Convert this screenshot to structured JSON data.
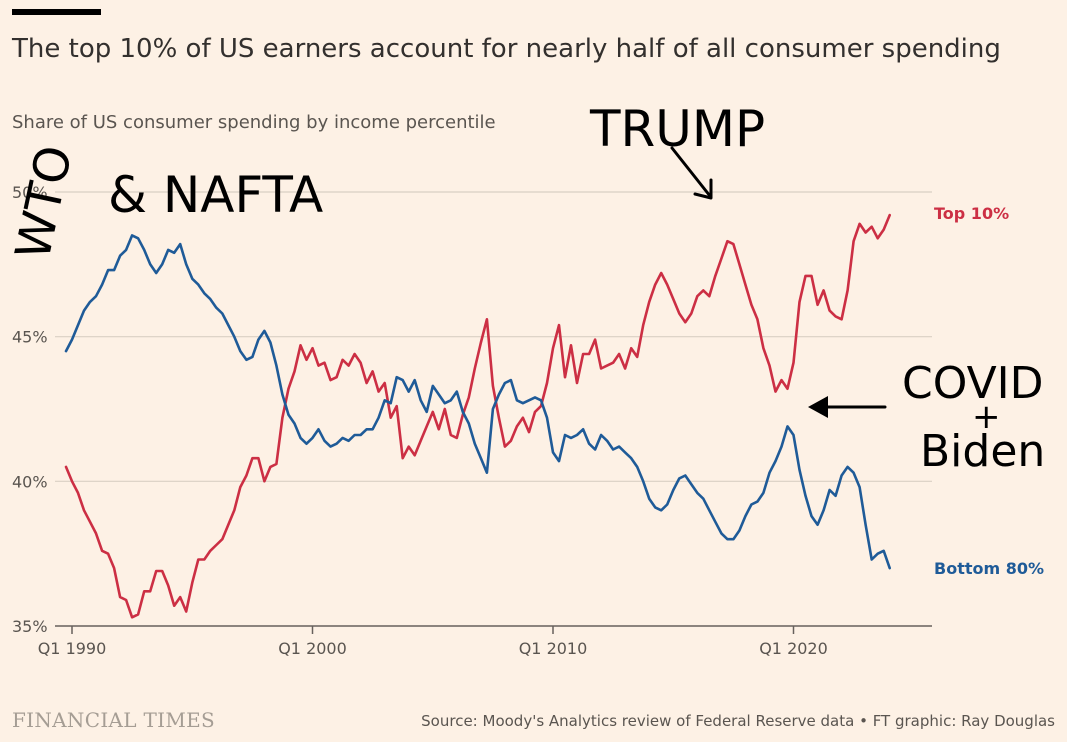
{
  "header": {
    "title": "The top 10% of US earners account for nearly half of all consumer spending",
    "subtitle": "Share of US consumer spending by income percentile"
  },
  "footer": {
    "brand": "FINANCIAL TIMES",
    "source": "Source: Moody's Analytics review of Federal Reserve data • FT graphic: Ray Douglas"
  },
  "colors": {
    "background": "#fdf1e5",
    "top10": "#cc2f44",
    "bottom80": "#1f5b98",
    "grid": "#d9cfc4",
    "axis": "#66605c"
  },
  "annotations": {
    "wto": "WTO",
    "nafta": "& NAFTA",
    "trump": "TRUMP",
    "covid": "COVID",
    "plus": "+",
    "biden": "Biden"
  },
  "chart_data": {
    "type": "line",
    "title": "The top 10% of US earners account for nearly half of all consumer spending",
    "subtitle": "Share of US consumer spending by income percentile",
    "xlabel": "",
    "ylabel": "",
    "xlim": [
      1990,
      2025.5
    ],
    "ylim": [
      35,
      50
    ],
    "y_ticks": [
      35,
      40,
      45,
      50
    ],
    "y_tick_labels": [
      "35%",
      "40%",
      "45%",
      "50%"
    ],
    "x_ticks": [
      1990,
      2000,
      2010,
      2020
    ],
    "x_tick_labels": [
      "Q1 1990",
      "Q1 2000",
      "Q1 2010",
      "Q1 2020"
    ],
    "grid": true,
    "legend": "right-end labels",
    "series": [
      {
        "name": "Top 10%",
        "points": [
          [
            1989.75,
            40.5
          ],
          [
            1990.0,
            40.0
          ],
          [
            1990.25,
            39.6
          ],
          [
            1990.5,
            39.0
          ],
          [
            1990.75,
            38.6
          ],
          [
            1991.0,
            38.2
          ],
          [
            1991.25,
            37.6
          ],
          [
            1991.5,
            37.5
          ],
          [
            1991.75,
            37.0
          ],
          [
            1992.0,
            36.0
          ],
          [
            1992.25,
            35.9
          ],
          [
            1992.5,
            35.3
          ],
          [
            1992.75,
            35.4
          ],
          [
            1993.0,
            36.2
          ],
          [
            1993.25,
            36.2
          ],
          [
            1993.5,
            36.9
          ],
          [
            1993.75,
            36.9
          ],
          [
            1994.0,
            36.4
          ],
          [
            1994.25,
            35.7
          ],
          [
            1994.5,
            36.0
          ],
          [
            1994.75,
            35.5
          ],
          [
            1995.0,
            36.5
          ],
          [
            1995.25,
            37.3
          ],
          [
            1995.5,
            37.3
          ],
          [
            1995.75,
            37.6
          ],
          [
            1996.0,
            37.8
          ],
          [
            1996.25,
            38.0
          ],
          [
            1996.5,
            38.5
          ],
          [
            1996.75,
            39.0
          ],
          [
            1997.0,
            39.8
          ],
          [
            1997.25,
            40.2
          ],
          [
            1997.5,
            40.8
          ],
          [
            1997.75,
            40.8
          ],
          [
            1998.0,
            40.0
          ],
          [
            1998.25,
            40.5
          ],
          [
            1998.5,
            40.6
          ],
          [
            1998.75,
            42.2
          ],
          [
            1999.0,
            43.2
          ],
          [
            1999.25,
            43.8
          ],
          [
            1999.5,
            44.7
          ],
          [
            1999.75,
            44.2
          ],
          [
            2000.0,
            44.6
          ],
          [
            2000.25,
            44.0
          ],
          [
            2000.5,
            44.1
          ],
          [
            2000.75,
            43.5
          ],
          [
            2001.0,
            43.6
          ],
          [
            2001.25,
            44.2
          ],
          [
            2001.5,
            44.0
          ],
          [
            2001.75,
            44.4
          ],
          [
            2002.0,
            44.1
          ],
          [
            2002.25,
            43.4
          ],
          [
            2002.5,
            43.8
          ],
          [
            2002.75,
            43.1
          ],
          [
            2003.0,
            43.4
          ],
          [
            2003.25,
            42.2
          ],
          [
            2003.5,
            42.6
          ],
          [
            2003.75,
            40.8
          ],
          [
            2004.0,
            41.2
          ],
          [
            2004.25,
            40.9
          ],
          [
            2004.5,
            41.4
          ],
          [
            2004.75,
            41.9
          ],
          [
            2005.0,
            42.4
          ],
          [
            2005.25,
            41.8
          ],
          [
            2005.5,
            42.5
          ],
          [
            2005.75,
            41.6
          ],
          [
            2006.0,
            41.5
          ],
          [
            2006.25,
            42.3
          ],
          [
            2006.5,
            42.9
          ],
          [
            2006.75,
            43.9
          ],
          [
            2007.0,
            44.8
          ],
          [
            2007.25,
            45.6
          ],
          [
            2007.5,
            43.3
          ],
          [
            2007.75,
            42.2
          ],
          [
            2008.0,
            41.2
          ],
          [
            2008.25,
            41.4
          ],
          [
            2008.5,
            41.9
          ],
          [
            2008.75,
            42.2
          ],
          [
            2009.0,
            41.7
          ],
          [
            2009.25,
            42.4
          ],
          [
            2009.5,
            42.6
          ],
          [
            2009.75,
            43.4
          ],
          [
            2010.0,
            44.6
          ],
          [
            2010.25,
            45.4
          ],
          [
            2010.5,
            43.6
          ],
          [
            2010.75,
            44.7
          ],
          [
            2011.0,
            43.4
          ],
          [
            2011.25,
            44.4
          ],
          [
            2011.5,
            44.4
          ],
          [
            2011.75,
            44.9
          ],
          [
            2012.0,
            43.9
          ],
          [
            2012.25,
            44.0
          ],
          [
            2012.5,
            44.1
          ],
          [
            2012.75,
            44.4
          ],
          [
            2013.0,
            43.9
          ],
          [
            2013.25,
            44.6
          ],
          [
            2013.5,
            44.3
          ],
          [
            2013.75,
            45.4
          ],
          [
            2014.0,
            46.2
          ],
          [
            2014.25,
            46.8
          ],
          [
            2014.5,
            47.2
          ],
          [
            2014.75,
            46.8
          ],
          [
            2015.0,
            46.3
          ],
          [
            2015.25,
            45.8
          ],
          [
            2015.5,
            45.5
          ],
          [
            2015.75,
            45.8
          ],
          [
            2016.0,
            46.4
          ],
          [
            2016.25,
            46.6
          ],
          [
            2016.5,
            46.4
          ],
          [
            2016.75,
            47.1
          ],
          [
            2017.0,
            47.7
          ],
          [
            2017.25,
            48.3
          ],
          [
            2017.5,
            48.2
          ],
          [
            2017.75,
            47.5
          ],
          [
            2018.0,
            46.8
          ],
          [
            2018.25,
            46.1
          ],
          [
            2018.5,
            45.6
          ],
          [
            2018.75,
            44.6
          ],
          [
            2019.0,
            44.0
          ],
          [
            2019.25,
            43.1
          ],
          [
            2019.5,
            43.5
          ],
          [
            2019.75,
            43.2
          ],
          [
            2020.0,
            44.1
          ],
          [
            2020.25,
            46.2
          ],
          [
            2020.5,
            47.1
          ],
          [
            2020.75,
            47.1
          ],
          [
            2021.0,
            46.1
          ],
          [
            2021.25,
            46.6
          ],
          [
            2021.5,
            45.9
          ],
          [
            2021.75,
            45.7
          ],
          [
            2022.0,
            45.6
          ],
          [
            2022.25,
            46.6
          ],
          [
            2022.5,
            48.3
          ],
          [
            2022.75,
            48.9
          ],
          [
            2023.0,
            48.6
          ],
          [
            2023.25,
            48.8
          ],
          [
            2023.5,
            48.4
          ],
          [
            2023.75,
            48.7
          ],
          [
            2024.0,
            49.2
          ]
        ]
      },
      {
        "name": "Bottom 80%",
        "points": [
          [
            1989.75,
            44.5
          ],
          [
            1990.0,
            44.9
          ],
          [
            1990.25,
            45.4
          ],
          [
            1990.5,
            45.9
          ],
          [
            1990.75,
            46.2
          ],
          [
            1991.0,
            46.4
          ],
          [
            1991.25,
            46.8
          ],
          [
            1991.5,
            47.3
          ],
          [
            1991.75,
            47.3
          ],
          [
            1992.0,
            47.8
          ],
          [
            1992.25,
            48.0
          ],
          [
            1992.5,
            48.5
          ],
          [
            1992.75,
            48.4
          ],
          [
            1993.0,
            48.0
          ],
          [
            1993.25,
            47.5
          ],
          [
            1993.5,
            47.2
          ],
          [
            1993.75,
            47.5
          ],
          [
            1994.0,
            48.0
          ],
          [
            1994.25,
            47.9
          ],
          [
            1994.5,
            48.2
          ],
          [
            1994.75,
            47.5
          ],
          [
            1995.0,
            47.0
          ],
          [
            1995.25,
            46.8
          ],
          [
            1995.5,
            46.5
          ],
          [
            1995.75,
            46.3
          ],
          [
            1996.0,
            46.0
          ],
          [
            1996.25,
            45.8
          ],
          [
            1996.5,
            45.4
          ],
          [
            1996.75,
            45.0
          ],
          [
            1997.0,
            44.5
          ],
          [
            1997.25,
            44.2
          ],
          [
            1997.5,
            44.3
          ],
          [
            1997.75,
            44.9
          ],
          [
            1998.0,
            45.2
          ],
          [
            1998.25,
            44.8
          ],
          [
            1998.5,
            44.0
          ],
          [
            1998.75,
            43.0
          ],
          [
            1999.0,
            42.3
          ],
          [
            1999.25,
            42.0
          ],
          [
            1999.5,
            41.5
          ],
          [
            1999.75,
            41.3
          ],
          [
            2000.0,
            41.5
          ],
          [
            2000.25,
            41.8
          ],
          [
            2000.5,
            41.4
          ],
          [
            2000.75,
            41.2
          ],
          [
            2001.0,
            41.3
          ],
          [
            2001.25,
            41.5
          ],
          [
            2001.5,
            41.4
          ],
          [
            2001.75,
            41.6
          ],
          [
            2002.0,
            41.6
          ],
          [
            2002.25,
            41.8
          ],
          [
            2002.5,
            41.8
          ],
          [
            2002.75,
            42.2
          ],
          [
            2003.0,
            42.8
          ],
          [
            2003.25,
            42.7
          ],
          [
            2003.5,
            43.6
          ],
          [
            2003.75,
            43.5
          ],
          [
            2004.0,
            43.1
          ],
          [
            2004.25,
            43.5
          ],
          [
            2004.5,
            42.8
          ],
          [
            2004.75,
            42.4
          ],
          [
            2005.0,
            43.3
          ],
          [
            2005.25,
            43.0
          ],
          [
            2005.5,
            42.7
          ],
          [
            2005.75,
            42.8
          ],
          [
            2006.0,
            43.1
          ],
          [
            2006.25,
            42.4
          ],
          [
            2006.5,
            42.0
          ],
          [
            2006.75,
            41.3
          ],
          [
            2007.0,
            40.8
          ],
          [
            2007.25,
            40.3
          ],
          [
            2007.5,
            42.5
          ],
          [
            2007.75,
            43.0
          ],
          [
            2008.0,
            43.4
          ],
          [
            2008.25,
            43.5
          ],
          [
            2008.5,
            42.8
          ],
          [
            2008.75,
            42.7
          ],
          [
            2009.0,
            42.8
          ],
          [
            2009.25,
            42.9
          ],
          [
            2009.5,
            42.8
          ],
          [
            2009.75,
            42.2
          ],
          [
            2010.0,
            41.0
          ],
          [
            2010.25,
            40.7
          ],
          [
            2010.5,
            41.6
          ],
          [
            2010.75,
            41.5
          ],
          [
            2011.0,
            41.6
          ],
          [
            2011.25,
            41.8
          ],
          [
            2011.5,
            41.3
          ],
          [
            2011.75,
            41.1
          ],
          [
            2012.0,
            41.6
          ],
          [
            2012.25,
            41.4
          ],
          [
            2012.5,
            41.1
          ],
          [
            2012.75,
            41.2
          ],
          [
            2013.0,
            41.0
          ],
          [
            2013.25,
            40.8
          ],
          [
            2013.5,
            40.5
          ],
          [
            2013.75,
            40.0
          ],
          [
            2014.0,
            39.4
          ],
          [
            2014.25,
            39.1
          ],
          [
            2014.5,
            39.0
          ],
          [
            2014.75,
            39.2
          ],
          [
            2015.0,
            39.7
          ],
          [
            2015.25,
            40.1
          ],
          [
            2015.5,
            40.2
          ],
          [
            2015.75,
            39.9
          ],
          [
            2016.0,
            39.6
          ],
          [
            2016.25,
            39.4
          ],
          [
            2016.5,
            39.0
          ],
          [
            2016.75,
            38.6
          ],
          [
            2017.0,
            38.2
          ],
          [
            2017.25,
            38.0
          ],
          [
            2017.5,
            38.0
          ],
          [
            2017.75,
            38.3
          ],
          [
            2018.0,
            38.8
          ],
          [
            2018.25,
            39.2
          ],
          [
            2018.5,
            39.3
          ],
          [
            2018.75,
            39.6
          ],
          [
            2019.0,
            40.3
          ],
          [
            2019.25,
            40.7
          ],
          [
            2019.5,
            41.2
          ],
          [
            2019.75,
            41.9
          ],
          [
            2020.0,
            41.6
          ],
          [
            2020.25,
            40.4
          ],
          [
            2020.5,
            39.5
          ],
          [
            2020.75,
            38.8
          ],
          [
            2021.0,
            38.5
          ],
          [
            2021.25,
            39.0
          ],
          [
            2021.5,
            39.7
          ],
          [
            2021.75,
            39.5
          ],
          [
            2022.0,
            40.2
          ],
          [
            2022.25,
            40.5
          ],
          [
            2022.5,
            40.3
          ],
          [
            2022.75,
            39.8
          ],
          [
            2023.0,
            38.5
          ],
          [
            2023.25,
            37.3
          ],
          [
            2023.5,
            37.5
          ],
          [
            2023.75,
            37.6
          ],
          [
            2024.0,
            37.0
          ]
        ]
      }
    ]
  }
}
